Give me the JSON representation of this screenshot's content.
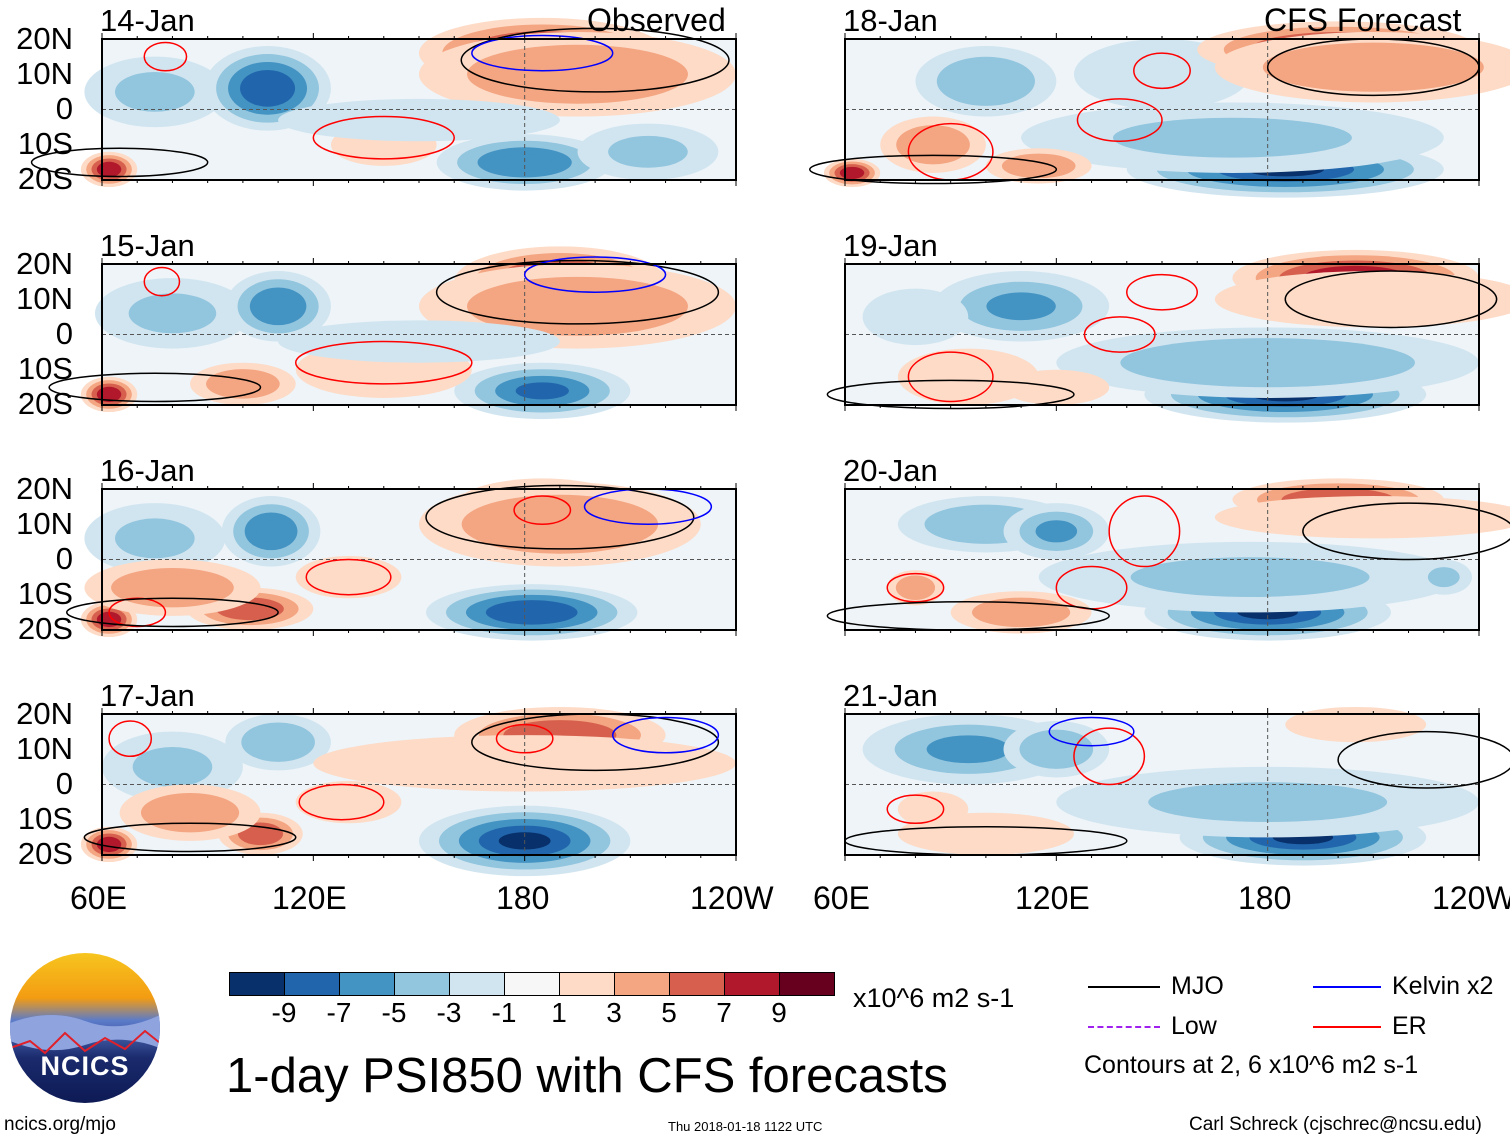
{
  "header": {
    "left_label": "Observed",
    "right_label": "CFS Forecast"
  },
  "lat_labels": [
    "20N",
    "10N",
    "0",
    "10S",
    "20S"
  ],
  "lon_labels": [
    "60E",
    "120E",
    "180",
    "120W"
  ],
  "palette": [
    "#08306b",
    "#2166ac",
    "#4393c3",
    "#92c5de",
    "#d1e5f0",
    "#f7f7f7",
    "#fddbc7",
    "#f4a582",
    "#d6604d",
    "#b2182b",
    "#67001f"
  ],
  "colorbar": {
    "ticks": [
      "-9",
      "-7",
      "-5",
      "-3",
      "-1",
      "1",
      "3",
      "5",
      "7",
      "9"
    ],
    "units": "x10^6 m2 s-1"
  },
  "title": "1-day PSI850 with CFS forecasts",
  "timestamp": "Thu 2018-01-18 1122 UTC",
  "footer_left": "ncics.org/mjo",
  "footer_right": "Carl Schreck (cjschrec@ncsu.edu)",
  "logo_text": "NCICS",
  "legend": {
    "items": [
      {
        "label": "MJO",
        "color": "#000000"
      },
      {
        "label": "Kelvin x2",
        "color": "#0000ff"
      },
      {
        "label": "Low",
        "color": "#a020f0"
      },
      {
        "label": "ER",
        "color": "#ff0000"
      }
    ],
    "note": "Contours at 2, 6 x10^6 m2 s-1"
  },
  "panels": [
    {
      "date": "14-Jan",
      "blobs": [
        [
          75,
          5,
          20,
          10,
          -3
        ],
        [
          107,
          6,
          18,
          12,
          -8
        ],
        [
          185,
          16,
          35,
          10,
          9
        ],
        [
          195,
          10,
          45,
          12,
          4
        ],
        [
          180,
          -15,
          25,
          8,
          -6
        ],
        [
          215,
          -12,
          20,
          8,
          -3
        ],
        [
          62,
          -17,
          8,
          5,
          9
        ],
        [
          140,
          -10,
          15,
          6,
          3
        ],
        [
          150,
          -3,
          40,
          6,
          -2
        ]
      ],
      "contours": [
        [
          200,
          14,
          38,
          9,
          "#000"
        ],
        [
          185,
          16,
          20,
          5,
          "#0000ff"
        ],
        [
          78,
          15,
          6,
          4,
          "#f00"
        ],
        [
          65,
          -15,
          25,
          4,
          "#000"
        ],
        [
          140,
          -8,
          20,
          6,
          "#f00"
        ]
      ]
    },
    {
      "date": "15-Jan",
      "blobs": [
        [
          80,
          6,
          22,
          10,
          -3
        ],
        [
          110,
          8,
          15,
          10,
          -6
        ],
        [
          190,
          15,
          30,
          10,
          9
        ],
        [
          195,
          8,
          45,
          12,
          4
        ],
        [
          185,
          -16,
          25,
          8,
          -7
        ],
        [
          62,
          -17,
          8,
          5,
          9
        ],
        [
          100,
          -14,
          15,
          6,
          4
        ],
        [
          140,
          -10,
          25,
          8,
          3
        ],
        [
          150,
          -2,
          40,
          6,
          -2
        ]
      ],
      "contours": [
        [
          195,
          12,
          40,
          9,
          "#000"
        ],
        [
          200,
          17,
          20,
          5,
          "#0000ff"
        ],
        [
          77,
          15,
          5,
          4,
          "#f00"
        ],
        [
          75,
          -15,
          30,
          4,
          "#000"
        ],
        [
          140,
          -8,
          25,
          6,
          "#f00"
        ]
      ]
    },
    {
      "date": "16-Jan",
      "blobs": [
        [
          75,
          6,
          20,
          10,
          -3
        ],
        [
          108,
          8,
          14,
          10,
          -6
        ],
        [
          185,
          15,
          25,
          8,
          9
        ],
        [
          190,
          10,
          40,
          12,
          5
        ],
        [
          182,
          -15,
          30,
          8,
          -8
        ],
        [
          62,
          -17,
          8,
          5,
          9
        ],
        [
          102,
          -14,
          18,
          6,
          7
        ],
        [
          80,
          -8,
          25,
          8,
          4
        ],
        [
          130,
          -5,
          15,
          6,
          3
        ]
      ],
      "contours": [
        [
          190,
          12,
          38,
          9,
          "#000"
        ],
        [
          215,
          15,
          18,
          5,
          "#0000ff"
        ],
        [
          185,
          14,
          8,
          4,
          "#f00"
        ],
        [
          70,
          -15,
          8,
          4,
          "#f00"
        ],
        [
          80,
          -15,
          30,
          4,
          "#000"
        ],
        [
          130,
          -5,
          12,
          5,
          "#f00"
        ]
      ]
    },
    {
      "date": "17-Jan",
      "blobs": [
        [
          80,
          5,
          20,
          10,
          -3
        ],
        [
          110,
          12,
          15,
          8,
          -4
        ],
        [
          190,
          14,
          30,
          8,
          7
        ],
        [
          180,
          6,
          60,
          8,
          3
        ],
        [
          180,
          -16,
          30,
          10,
          -9
        ],
        [
          62,
          -17,
          8,
          5,
          9
        ],
        [
          105,
          -14,
          12,
          6,
          7
        ],
        [
          85,
          -8,
          20,
          8,
          5
        ],
        [
          130,
          -5,
          15,
          6,
          3
        ]
      ],
      "contours": [
        [
          200,
          12,
          35,
          8,
          "#000"
        ],
        [
          220,
          14,
          15,
          5,
          "#0000ff"
        ],
        [
          68,
          13,
          6,
          5,
          "#f00"
        ],
        [
          180,
          13,
          8,
          4,
          "#f00"
        ],
        [
          85,
          -15,
          30,
          4,
          "#000"
        ],
        [
          128,
          -5,
          12,
          5,
          "#f00"
        ]
      ]
    },
    {
      "date": "18-Jan",
      "blobs": [
        [
          100,
          8,
          20,
          10,
          -4
        ],
        [
          150,
          10,
          25,
          10,
          -2
        ],
        [
          200,
          17,
          40,
          8,
          8
        ],
        [
          210,
          12,
          45,
          10,
          4
        ],
        [
          185,
          -17,
          45,
          8,
          -9
        ],
        [
          170,
          -8,
          60,
          10,
          -3
        ],
        [
          85,
          -10,
          15,
          8,
          5
        ],
        [
          62,
          -18,
          8,
          4,
          8
        ],
        [
          115,
          -16,
          15,
          5,
          4
        ]
      ],
      "contours": [
        [
          210,
          12,
          30,
          8,
          "#000"
        ],
        [
          150,
          11,
          8,
          5,
          "#f00"
        ],
        [
          138,
          -3,
          12,
          6,
          "#f00"
        ],
        [
          90,
          -12,
          12,
          8,
          "#f00"
        ],
        [
          85,
          -17,
          35,
          4,
          "#000"
        ]
      ]
    },
    {
      "date": "19-Jan",
      "blobs": [
        [
          110,
          8,
          25,
          10,
          -5
        ],
        [
          80,
          5,
          15,
          8,
          -2
        ],
        [
          205,
          16,
          35,
          8,
          8
        ],
        [
          210,
          10,
          45,
          8,
          3
        ],
        [
          185,
          -17,
          40,
          8,
          -9
        ],
        [
          180,
          -8,
          60,
          10,
          -4
        ],
        [
          95,
          -12,
          20,
          8,
          3
        ],
        [
          120,
          -15,
          15,
          5,
          3
        ]
      ],
      "contours": [
        [
          215,
          10,
          30,
          8,
          "#000"
        ],
        [
          150,
          12,
          10,
          5,
          "#f00"
        ],
        [
          138,
          0,
          10,
          5,
          "#f00"
        ],
        [
          90,
          -12,
          12,
          7,
          "#f00"
        ],
        [
          90,
          -17,
          35,
          4,
          "#000"
        ]
      ]
    },
    {
      "date": "20-Jan",
      "blobs": [
        [
          100,
          10,
          25,
          8,
          -4
        ],
        [
          120,
          8,
          15,
          8,
          -5
        ],
        [
          200,
          17,
          30,
          6,
          6
        ],
        [
          210,
          12,
          45,
          6,
          3
        ],
        [
          180,
          -15,
          35,
          8,
          -9
        ],
        [
          175,
          -5,
          60,
          10,
          -3
        ],
        [
          110,
          -15,
          20,
          6,
          4
        ],
        [
          80,
          -8,
          8,
          5,
          4
        ],
        [
          230,
          -5,
          8,
          5,
          -3
        ]
      ],
      "contours": [
        [
          220,
          8,
          30,
          8,
          "#000"
        ],
        [
          145,
          8,
          10,
          10,
          "#f00"
        ],
        [
          80,
          -8,
          8,
          4,
          "#f00"
        ],
        [
          130,
          -8,
          10,
          6,
          "#f00"
        ],
        [
          95,
          -16,
          40,
          4,
          "#000"
        ]
      ]
    },
    {
      "date": "21-Jan",
      "blobs": [
        [
          95,
          10,
          30,
          10,
          -5
        ],
        [
          120,
          10,
          15,
          8,
          -4
        ],
        [
          205,
          17,
          20,
          5,
          3
        ],
        [
          190,
          -15,
          35,
          8,
          -9
        ],
        [
          180,
          -5,
          60,
          10,
          -3
        ],
        [
          100,
          -14,
          25,
          6,
          3
        ],
        [
          85,
          -7,
          10,
          5,
          2
        ]
      ],
      "contours": [
        [
          225,
          7,
          25,
          8,
          "#000"
        ],
        [
          135,
          8,
          10,
          8,
          "#f00"
        ],
        [
          80,
          -7,
          8,
          4,
          "#f00"
        ],
        [
          130,
          15,
          12,
          4,
          "#0000ff"
        ],
        [
          100,
          -16,
          40,
          4,
          "#000"
        ]
      ]
    }
  ]
}
